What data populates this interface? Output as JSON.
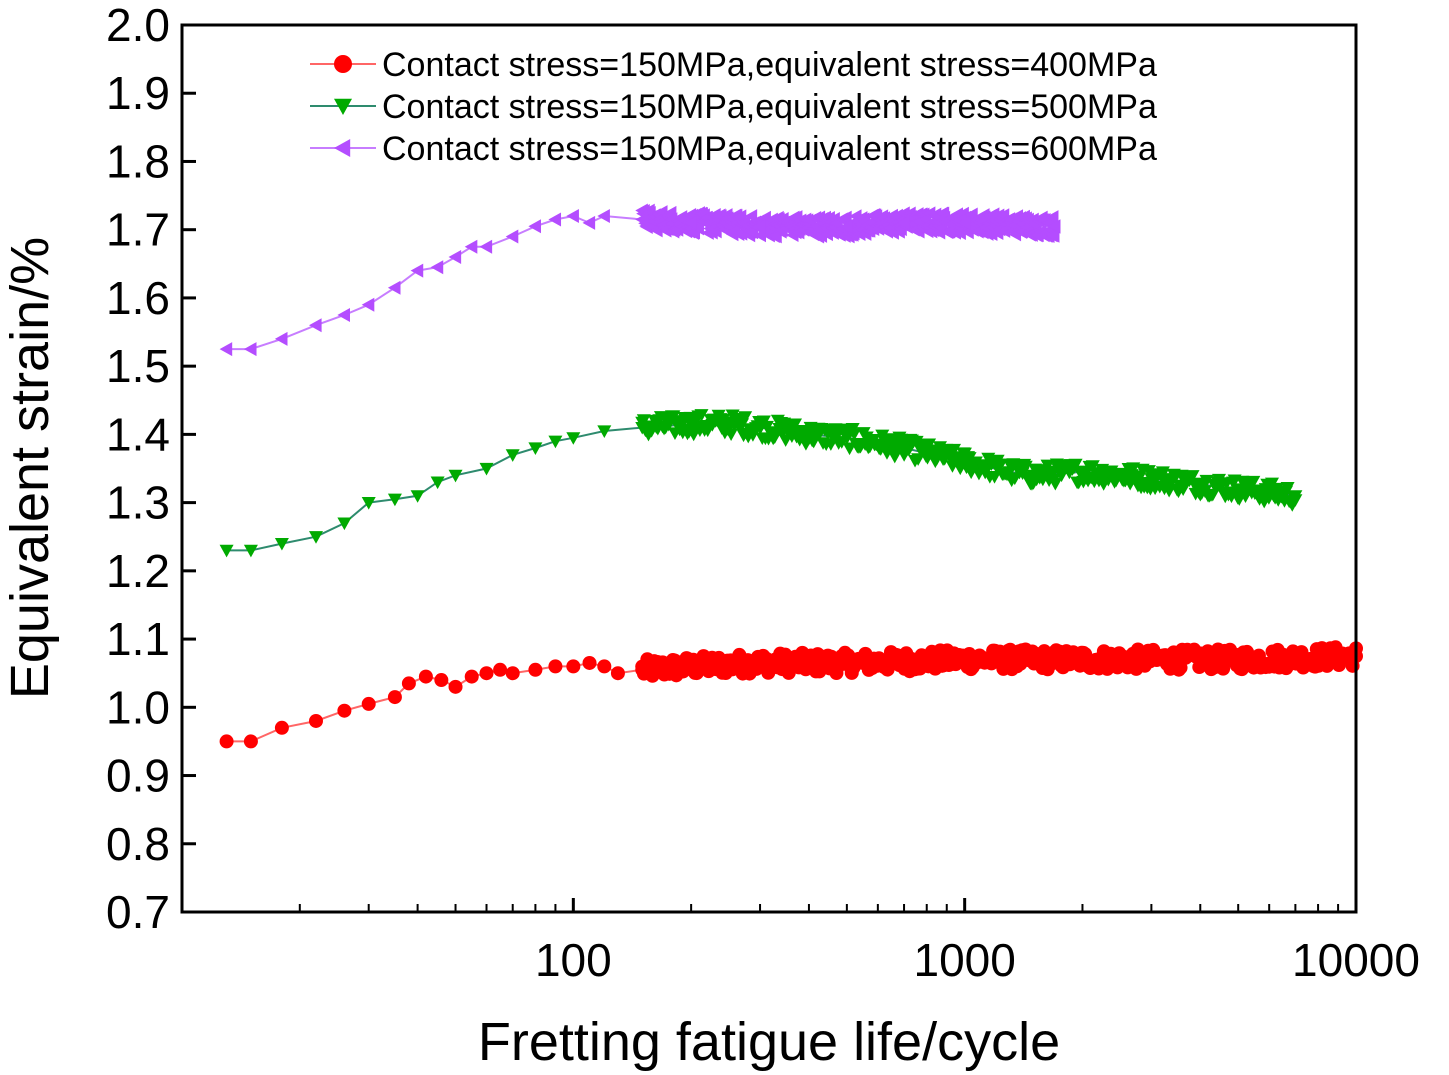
{
  "chart_data": {
    "type": "line",
    "title": "",
    "xlabel": "Fretting fatigue life/cycle",
    "ylabel": "Equivalent strain/%",
    "xscale": "log",
    "xlim": [
      10,
      10000
    ],
    "ylim": [
      0.7,
      2.0
    ],
    "xticks": [
      {
        "value": 100,
        "label": "100"
      },
      {
        "value": 1000,
        "label": "1000"
      },
      {
        "value": 10000,
        "label": "10000"
      }
    ],
    "yticks": [
      {
        "value": 0.7,
        "label": "0.7"
      },
      {
        "value": 0.8,
        "label": "0.8"
      },
      {
        "value": 0.9,
        "label": "0.9"
      },
      {
        "value": 1.0,
        "label": "1.0"
      },
      {
        "value": 1.1,
        "label": "1.1"
      },
      {
        "value": 1.2,
        "label": "1.2"
      },
      {
        "value": 1.3,
        "label": "1.3"
      },
      {
        "value": 1.4,
        "label": "1.4"
      },
      {
        "value": 1.5,
        "label": "1.5"
      },
      {
        "value": 1.6,
        "label": "1.6"
      },
      {
        "value": 1.7,
        "label": "1.7"
      },
      {
        "value": 1.8,
        "label": "1.8"
      },
      {
        "value": 1.9,
        "label": "1.9"
      },
      {
        "value": 2.0,
        "label": "2.0"
      }
    ],
    "legend_position": "top-right",
    "series": [
      {
        "name": "Contact stress=150MPa,equivalent stress=400MPa",
        "color": "#ff0000",
        "line_color": "#ff6666",
        "marker": "circle",
        "end": 10000,
        "x": [
          13,
          15,
          18,
          22,
          26,
          30,
          35,
          38,
          42,
          46,
          50,
          55,
          60,
          65,
          70,
          80,
          90,
          100,
          110,
          120,
          130,
          150,
          200,
          300,
          500,
          1000,
          2000,
          5000,
          10000
        ],
        "y": [
          0.95,
          0.95,
          0.97,
          0.98,
          0.995,
          1.005,
          1.015,
          1.035,
          1.045,
          1.04,
          1.03,
          1.045,
          1.05,
          1.055,
          1.05,
          1.055,
          1.06,
          1.06,
          1.065,
          1.06,
          1.05,
          1.055,
          1.06,
          1.065,
          1.065,
          1.07,
          1.07,
          1.07,
          1.075
        ]
      },
      {
        "name": "Contact stress=150MPa,equivalent stress=500MPa",
        "color": "#00aa00",
        "line_color": "#2e8b6e",
        "marker": "triangle-down",
        "end": 7000,
        "x": [
          13,
          15,
          18,
          22,
          26,
          30,
          35,
          40,
          45,
          50,
          60,
          70,
          80,
          90,
          100,
          120,
          150,
          200,
          250,
          300,
          400,
          500,
          700,
          1000,
          1300,
          1500,
          2000,
          3000,
          5000,
          7000
        ],
        "y": [
          1.23,
          1.23,
          1.24,
          1.25,
          1.27,
          1.3,
          1.305,
          1.31,
          1.33,
          1.34,
          1.35,
          1.37,
          1.38,
          1.39,
          1.395,
          1.405,
          1.41,
          1.415,
          1.415,
          1.41,
          1.4,
          1.395,
          1.38,
          1.36,
          1.345,
          1.34,
          1.345,
          1.335,
          1.32,
          1.31
        ]
      },
      {
        "name": "Contact stress=150MPa,equivalent stress=600MPa",
        "color": "#b44dff",
        "line_color": "#c77dff",
        "marker": "triangle-left",
        "end": 1700,
        "x": [
          13,
          15,
          18,
          22,
          26,
          30,
          35,
          40,
          45,
          50,
          55,
          60,
          70,
          80,
          90,
          100,
          110,
          120,
          150,
          200,
          300,
          500,
          700,
          1000,
          1700
        ],
        "y": [
          1.525,
          1.525,
          1.54,
          1.56,
          1.575,
          1.59,
          1.615,
          1.64,
          1.645,
          1.66,
          1.675,
          1.675,
          1.69,
          1.705,
          1.715,
          1.72,
          1.71,
          1.72,
          1.715,
          1.71,
          1.705,
          1.705,
          1.71,
          1.71,
          1.705
        ]
      }
    ]
  }
}
